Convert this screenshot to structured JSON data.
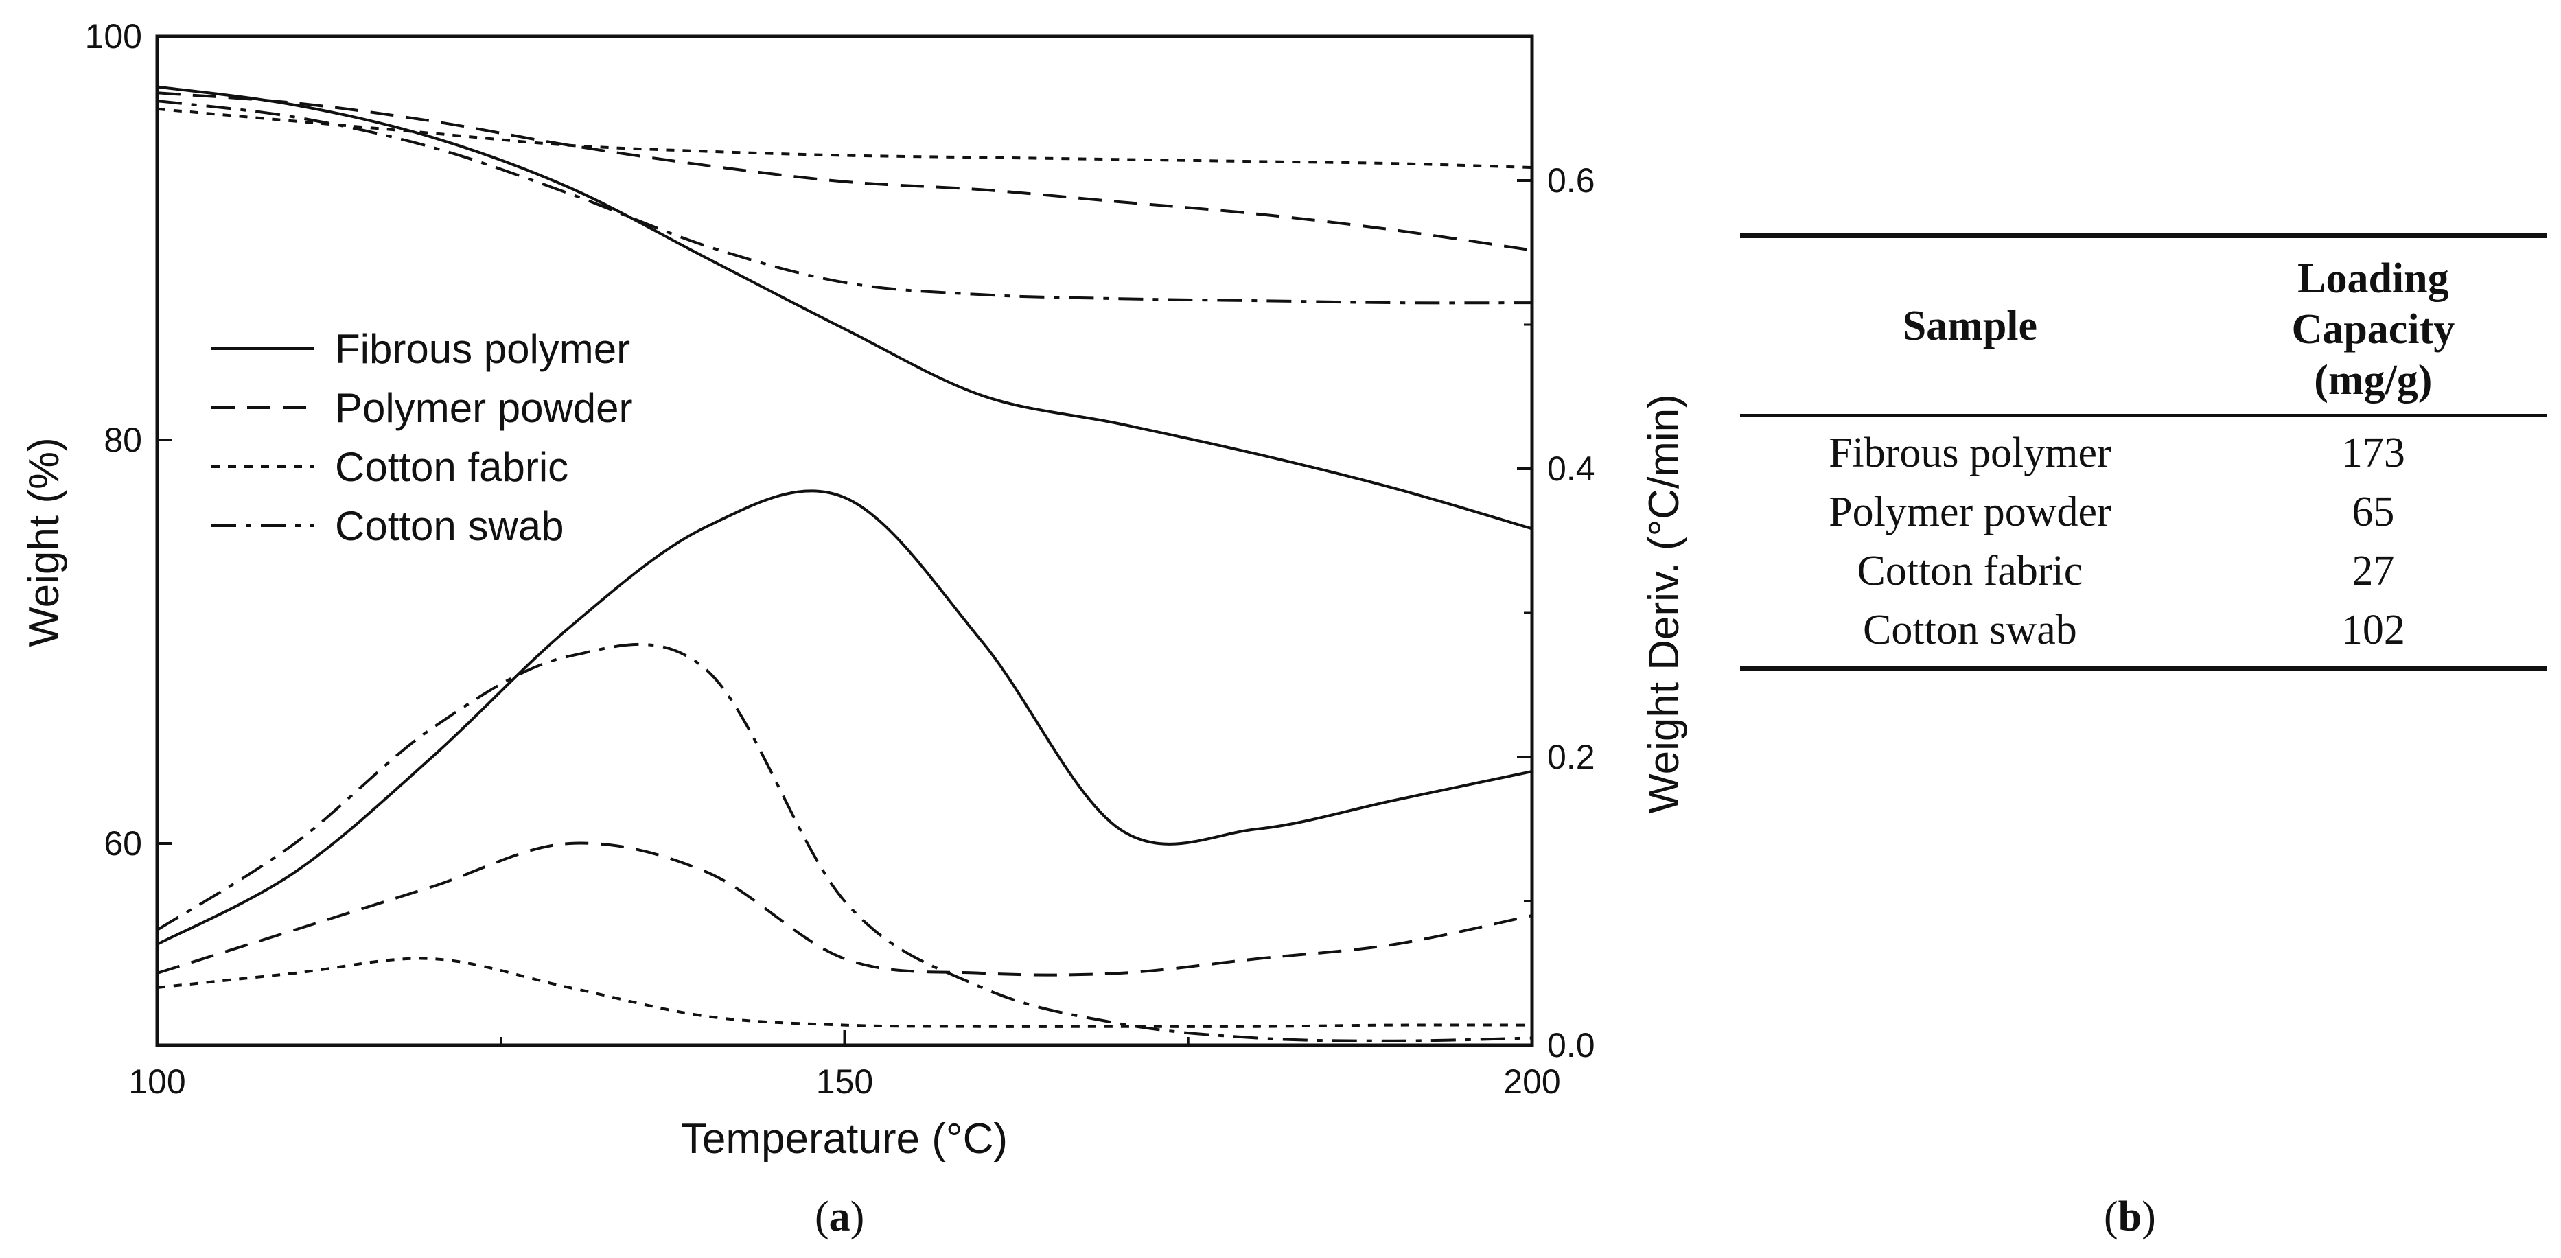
{
  "panel_labels": {
    "a": "a",
    "b": "b"
  },
  "chart_data": {
    "type": "line",
    "x_axis": {
      "label": "Temperature (°C)",
      "range": [
        100,
        200
      ],
      "ticks": [
        100,
        150,
        200
      ]
    },
    "y_left": {
      "label": "Weight (%)",
      "range": [
        50,
        100
      ],
      "ticks": [
        60,
        80,
        100
      ]
    },
    "y_right": {
      "label": "Weight Deriv. (°C/min)",
      "range": [
        0,
        0.7
      ],
      "ticks": [
        "0.0",
        "0.2",
        "0.4",
        "0.6"
      ]
    },
    "legend": {
      "placement": "upper-left",
      "entries": [
        {
          "name": "Fibrous polymer",
          "style": "solid"
        },
        {
          "name": "Polymer powder",
          "style": "dashed"
        },
        {
          "name": "Cotton fabric",
          "style": "dotted"
        },
        {
          "name": "Cotton swab",
          "style": "dash-dot"
        }
      ]
    },
    "weight_series": [
      {
        "name": "Fibrous polymer",
        "style": "solid",
        "axis": "left",
        "x": [
          100,
          110,
          120,
          130,
          140,
          150,
          160,
          170,
          180,
          190,
          200
        ],
        "y": [
          97.5,
          96.6,
          95.0,
          92.5,
          89.0,
          85.5,
          82.2,
          80.8,
          79.3,
          77.6,
          75.6
        ]
      },
      {
        "name": "Polymer powder",
        "style": "dashed",
        "axis": "left",
        "x": [
          100,
          110,
          120,
          130,
          140,
          150,
          160,
          170,
          180,
          190,
          200
        ],
        "y": [
          97.2,
          96.7,
          95.8,
          94.6,
          93.6,
          92.8,
          92.4,
          91.8,
          91.2,
          90.4,
          89.4
        ]
      },
      {
        "name": "Cotton fabric",
        "style": "dotted",
        "axis": "left",
        "x": [
          100,
          110,
          120,
          130,
          140,
          150,
          160,
          170,
          180,
          190,
          200
        ],
        "y": [
          96.4,
          95.8,
          95.2,
          94.6,
          94.3,
          94.1,
          94.0,
          93.9,
          93.8,
          93.7,
          93.5
        ]
      },
      {
        "name": "Cotton swab",
        "style": "dash-dot",
        "axis": "left",
        "x": [
          100,
          110,
          120,
          130,
          140,
          150,
          160,
          170,
          180,
          190,
          200
        ],
        "y": [
          96.8,
          96.0,
          94.5,
          92.2,
          89.6,
          87.8,
          87.2,
          87.0,
          86.9,
          86.8,
          86.8
        ]
      }
    ],
    "derivative_series": [
      {
        "name": "Fibrous polymer",
        "style": "solid",
        "axis": "right",
        "x": [
          100,
          110,
          120,
          130,
          140,
          150,
          160,
          170,
          180,
          190,
          200
        ],
        "y": [
          0.07,
          0.12,
          0.2,
          0.29,
          0.36,
          0.38,
          0.28,
          0.15,
          0.15,
          0.17,
          0.19
        ]
      },
      {
        "name": "Polymer powder",
        "style": "dashed",
        "axis": "right",
        "x": [
          100,
          110,
          120,
          130,
          140,
          150,
          160,
          170,
          180,
          190,
          200
        ],
        "y": [
          0.05,
          0.08,
          0.11,
          0.14,
          0.12,
          0.06,
          0.05,
          0.05,
          0.06,
          0.07,
          0.09
        ]
      },
      {
        "name": "Cotton fabric",
        "style": "dotted",
        "axis": "right",
        "x": [
          100,
          110,
          120,
          130,
          140,
          150,
          160,
          170,
          180,
          190,
          200
        ],
        "y": [
          0.04,
          0.05,
          0.06,
          0.04,
          0.02,
          0.014,
          0.013,
          0.013,
          0.013,
          0.014,
          0.014
        ]
      },
      {
        "name": "Cotton swab",
        "style": "dash-dot",
        "axis": "right",
        "x": [
          100,
          110,
          120,
          130,
          140,
          150,
          160,
          170,
          180,
          190,
          200
        ],
        "y": [
          0.08,
          0.14,
          0.22,
          0.27,
          0.26,
          0.1,
          0.04,
          0.015,
          0.005,
          0.003,
          0.005
        ]
      }
    ]
  },
  "table": {
    "headers": {
      "sample": "Sample",
      "capacity": [
        "Loading",
        "Capacity",
        "(mg/g)"
      ]
    },
    "rows": [
      {
        "sample": "Fibrous polymer",
        "capacity": "173"
      },
      {
        "sample": "Polymer powder",
        "capacity": "65"
      },
      {
        "sample": "Cotton fabric",
        "capacity": "27"
      },
      {
        "sample": "Cotton swab",
        "capacity": "102"
      }
    ]
  }
}
